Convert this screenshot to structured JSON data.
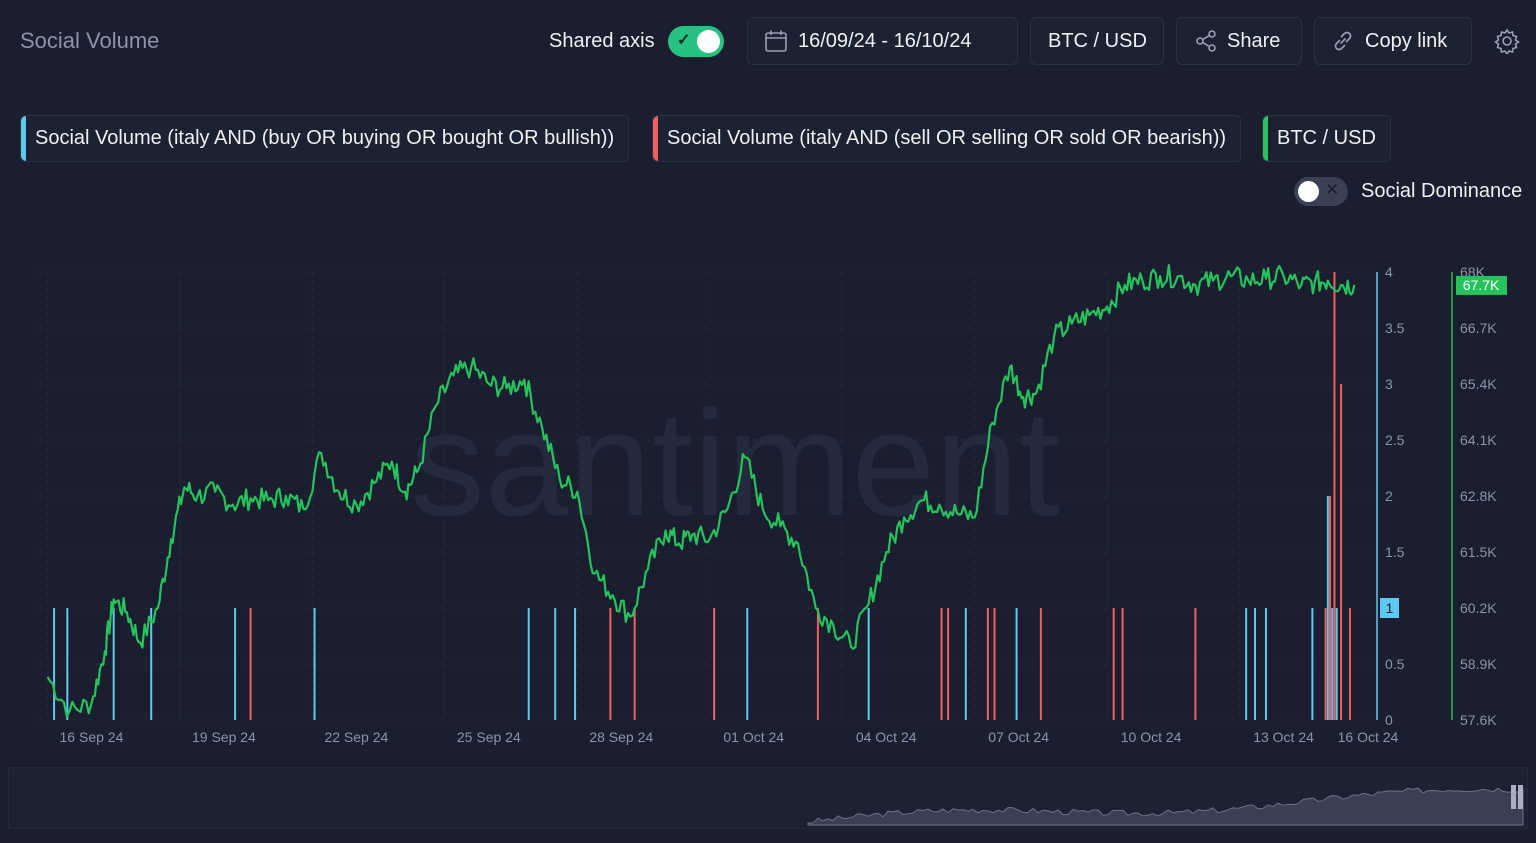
{
  "header": {
    "title": "Social Volume",
    "shared_axis_label": "Shared axis",
    "date_range": "16/09/24 - 16/10/24",
    "pair": "BTC / USD",
    "share_label": "Share",
    "copy_link_label": "Copy link"
  },
  "metrics": [
    {
      "label": "Social Volume (italy AND (buy OR buying OR bought OR bullish))",
      "color": "#5ec9ee"
    },
    {
      "label": "Social Volume (italy AND (sell OR selling OR sold OR bearish))",
      "color": "#ef5f5f"
    },
    {
      "label": "BTC / USD",
      "color": "#26c25b"
    }
  ],
  "social_dominance_label": "Social Dominance",
  "watermark": "santiment",
  "chart_data": {
    "type": "line",
    "x_tick_labels": [
      "16 Sep 24",
      "19 Sep 24",
      "22 Sep 24",
      "25 Sep 24",
      "28 Sep 24",
      "01 Oct 24",
      "04 Oct 24",
      "07 Oct 24",
      "10 Oct 24",
      "13 Oct 24",
      "16 Oct 24"
    ],
    "left_axis": {
      "ticks": [
        "4",
        "3.5",
        "3",
        "2.5",
        "2",
        "1.5",
        "1",
        "0.5",
        "0"
      ],
      "range": [
        0,
        4
      ],
      "current_value_label": "1",
      "color": "#5ec9ee"
    },
    "right_axis": {
      "ticks": [
        "68K",
        "66.7K",
        "65.4K",
        "64.1K",
        "62.8K",
        "61.5K",
        "60.2K",
        "58.9K",
        "57.6K"
      ],
      "range": [
        57600,
        68000
      ],
      "current_value_label": "67.7K",
      "color": "#26c25b"
    },
    "series": [
      {
        "name": "Social Volume (italy AND (buy OR buying OR bought OR bullish))",
        "kind": "bars",
        "color": "#5ec9ee",
        "x_days": [
          0.15,
          0.45,
          1.5,
          2.35,
          4.25,
          6.05,
          10.9,
          11.5,
          11.95,
          15.85,
          18.6,
          20.8,
          21.95,
          27.15,
          27.35,
          27.6,
          28.65,
          29.0,
          29.1,
          29.2
        ],
        "values": [
          1,
          1,
          1,
          1,
          1,
          1,
          1,
          1,
          1,
          1,
          1,
          1,
          1,
          1,
          1,
          1,
          1,
          2,
          1,
          1
        ]
      },
      {
        "name": "Social Volume (italy AND (sell OR selling OR sold OR bearish))",
        "kind": "bars",
        "color": "#ef5f5f",
        "x_days": [
          4.6,
          12.75,
          13.3,
          15.1,
          17.45,
          20.25,
          20.4,
          21.3,
          21.45,
          22.5,
          24.15,
          24.35,
          26.0,
          28.95,
          29.05,
          29.15,
          29.3,
          29.5
        ],
        "values": [
          1,
          1,
          1,
          1,
          1,
          1,
          1,
          1,
          1,
          1,
          1,
          1,
          1,
          1,
          2,
          4,
          3,
          1
        ]
      },
      {
        "name": "BTC / USD",
        "kind": "line",
        "color": "#26c25b",
        "x_days": [
          0,
          0.5,
          1,
          1.3,
          1.5,
          1.8,
          2.1,
          2.5,
          2.8,
          3.1,
          3.4,
          3.8,
          4.2,
          4.6,
          5.0,
          5.4,
          5.8,
          6.2,
          6.6,
          7.0,
          7.4,
          7.8,
          8.1,
          8.4,
          8.8,
          9.2,
          9.6,
          10.0,
          10.4,
          10.8,
          11.2,
          11.6,
          12.0,
          12.4,
          12.8,
          13.2,
          13.6,
          14.0,
          14.3,
          14.6,
          15.0,
          15.4,
          15.8,
          16.2,
          16.6,
          17.0,
          17.4,
          17.8,
          18.2,
          18.6,
          19.0,
          19.4,
          19.8,
          20.2,
          20.6,
          21.0,
          21.4,
          21.8,
          22.1,
          22.4,
          22.8,
          23.2,
          23.6,
          24.0,
          24.4,
          24.8,
          25.2,
          25.6,
          26.0,
          26.4,
          26.8,
          27.2,
          27.6,
          28.0,
          28.4,
          28.7,
          29.0,
          29.3,
          29.6
        ],
        "values": [
          58600,
          57800,
          58000,
          59200,
          60400,
          60100,
          59400,
          60200,
          61800,
          63000,
          62800,
          62900,
          62600,
          62750,
          62700,
          62800,
          62500,
          63800,
          62900,
          62600,
          63100,
          63600,
          62900,
          63400,
          64900,
          65600,
          65800,
          65400,
          65300,
          65500,
          64400,
          63200,
          62900,
          61000,
          60500,
          60000,
          61100,
          62000,
          61700,
          61900,
          61800,
          62500,
          63700,
          62500,
          62100,
          61700,
          60200,
          59800,
          59300,
          60300,
          61500,
          62300,
          62700,
          62600,
          62400,
          62300,
          64500,
          65800,
          65100,
          65200,
          66500,
          66800,
          67000,
          67200,
          67700,
          67800,
          67900,
          67900,
          67700,
          67800,
          67900,
          67800,
          67850,
          67900,
          67700,
          67750,
          67800,
          67700,
          67700
        ],
        "note_values": ""
      }
    ]
  }
}
